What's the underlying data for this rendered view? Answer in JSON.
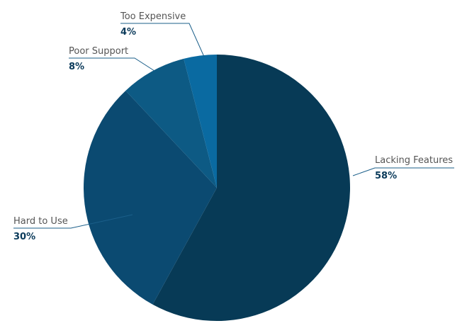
{
  "chart_data": {
    "type": "pie",
    "categories": [
      "Lacking Features",
      "Hard to Use",
      "Poor Support",
      "Too Expensive"
    ],
    "values": [
      58,
      30,
      8,
      4
    ],
    "value_labels": [
      "58%",
      "30%",
      "8%",
      "4%"
    ],
    "colors": [
      "#073a56",
      "#0b4a71",
      "#0d5a84",
      "#0a6aa1"
    ],
    "label_color": "#555555",
    "value_color": "#0a3a5a",
    "leader_color": "#1b5f8a",
    "start_angle_deg": 0,
    "direction": "clockwise",
    "legend": "none"
  }
}
